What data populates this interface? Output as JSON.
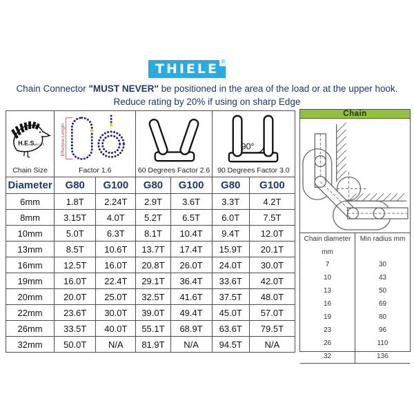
{
  "brand": {
    "logo_text": "THIELE",
    "registered_mark": "®",
    "brand_blue": "#29abe2"
  },
  "warning": {
    "line1_prefix": "Chain Connector ",
    "line1_bold": "\"MUST NEVER\"",
    "line1_suffix": " be positioned in the area of the load or at the upper hook.",
    "line2": "Reduce rating by 20% if using on sharp Edge"
  },
  "hes_logo": {
    "text_main": "H.E.S.",
    "text_sub": "NZ LTD"
  },
  "rating_table": {
    "section_headers": [
      {
        "label": "Chain Size",
        "icon": "hes-kiwi-logo"
      },
      {
        "label": "Factor 1.6",
        "icon": "chain-sling-icon",
        "annotation": "Effective Length"
      },
      {
        "label": "60 Degrees Factor 2.6",
        "icon": "connector-60deg-icon"
      },
      {
        "label": "90 Degrees Factor 3.0",
        "icon": "connector-90deg-icon",
        "angle_label": "90°"
      }
    ],
    "columns": [
      "Diameter",
      "G80",
      "G100",
      "G80",
      "G100",
      "G80",
      "G100"
    ],
    "rows": [
      [
        "6mm",
        "1.8T",
        "2.24T",
        "2.9T",
        "3.6T",
        "3.3T",
        "4.2T"
      ],
      [
        "8mm",
        "3.15T",
        "4.0T",
        "5.2T",
        "6.5T",
        "6.0T",
        "7.5T"
      ],
      [
        "10mm",
        "5.0T",
        "6.3T",
        "8.1T",
        "10.4T",
        "9.4T",
        "12.0T"
      ],
      [
        "13mm",
        "8.5T",
        "10.6T",
        "13.7T",
        "17.4T",
        "15.9T",
        "20.1T"
      ],
      [
        "16mm",
        "12.5T",
        "16.0T",
        "20.8T",
        "26.0T",
        "24.0T",
        "30.0T"
      ],
      [
        "19mm",
        "16.0T",
        "22.4T",
        "29.1T",
        "36.4T",
        "33.6T",
        "42.0T"
      ],
      [
        "20mm",
        "20.0T",
        "25.0T",
        "32.5T",
        "41.6T",
        "37.5T",
        "48.0T"
      ],
      [
        "22mm",
        "23.6T",
        "30.0T",
        "39.0T",
        "49.4T",
        "45.0T",
        "57.0T"
      ],
      [
        "26mm",
        "33.5T",
        "40.0T",
        "55.1T",
        "68.9T",
        "63.6T",
        "79.5T"
      ],
      [
        "32mm",
        "50.0T",
        "N/A",
        "81.9T",
        "N/A",
        "94.5T",
        "N/A"
      ]
    ]
  },
  "chain_panel": {
    "title": "Chain",
    "header_green": "#92c13e",
    "radius_table": {
      "col1_header": "Chain diameter",
      "col1_header_unit": "mm",
      "col2_header": "Min radius mm",
      "rows": [
        [
          "7",
          "30"
        ],
        [
          "10",
          "43"
        ],
        [
          "13",
          "50"
        ],
        [
          "16",
          "69"
        ],
        [
          "19",
          "80"
        ],
        [
          "23",
          "96"
        ],
        [
          "26",
          "110"
        ],
        [
          "32",
          "136"
        ]
      ]
    }
  }
}
